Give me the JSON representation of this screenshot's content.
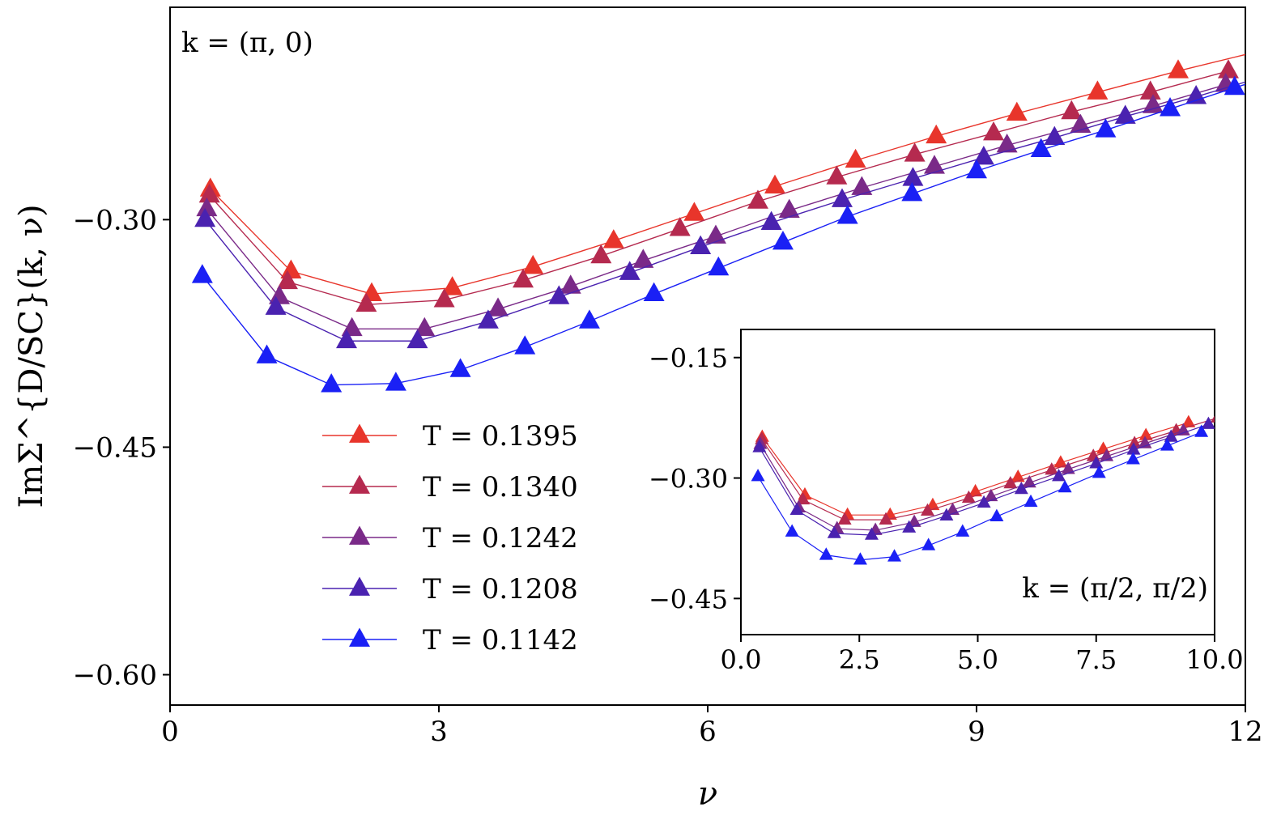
{
  "chart_data": [
    {
      "type": "line",
      "role": "main",
      "xlabel": "ν",
      "ylabel": "ImΣ^{D/SC}(k, ν)",
      "annotation": "k = (π, 0)",
      "xlim": [
        0,
        12
      ],
      "ylim": [
        -0.62,
        -0.16
      ],
      "xticks": [
        0,
        3,
        6,
        9,
        12
      ],
      "xtick_labels": [
        "0",
        "3",
        "6",
        "9",
        "12"
      ],
      "yticks": [
        -0.3,
        -0.45,
        -0.6
      ],
      "ytick_labels": [
        "−0.30",
        "−0.45",
        "−0.60"
      ],
      "grid": false,
      "legend_position": "lower-left",
      "marker": "triangle-up",
      "series": [
        {
          "name": "T = 0.1395",
          "color": "#e8352b",
          "x": [
            0.45,
            1.35,
            2.25,
            3.15,
            4.05,
            4.95,
            5.85,
            6.75,
            7.65,
            8.55,
            9.45,
            10.35,
            11.25,
            12.15
          ],
          "y": [
            -0.28,
            -0.334,
            -0.349,
            -0.345,
            -0.331,
            -0.314,
            -0.296,
            -0.278,
            -0.261,
            -0.245,
            -0.23,
            -0.216,
            -0.202,
            -0.189
          ]
        },
        {
          "name": "T = 0.1340",
          "color": "#b52a4f",
          "x": [
            0.44,
            1.31,
            2.19,
            3.06,
            3.94,
            4.81,
            5.69,
            6.56,
            7.44,
            8.31,
            9.19,
            10.06,
            10.94,
            11.81
          ],
          "y": [
            -0.284,
            -0.341,
            -0.356,
            -0.353,
            -0.34,
            -0.324,
            -0.306,
            -0.288,
            -0.272,
            -0.257,
            -0.243,
            -0.229,
            -0.216,
            -0.202
          ]
        },
        {
          "name": "T = 0.1242",
          "color": "#7a2a88",
          "x": [
            0.41,
            1.22,
            2.03,
            2.84,
            3.66,
            4.47,
            5.28,
            6.09,
            6.91,
            7.72,
            8.53,
            9.34,
            10.16,
            10.97,
            11.78
          ],
          "y": [
            -0.293,
            -0.351,
            -0.372,
            -0.372,
            -0.359,
            -0.344,
            -0.327,
            -0.311,
            -0.294,
            -0.279,
            -0.265,
            -0.251,
            -0.238,
            -0.225,
            -0.211
          ]
        },
        {
          "name": "T = 0.1208",
          "color": "#4a22b0",
          "x": [
            0.39,
            1.18,
            1.97,
            2.76,
            3.55,
            4.34,
            5.13,
            5.92,
            6.71,
            7.5,
            8.29,
            9.08,
            9.87,
            10.66,
            11.45,
            12.24
          ],
          "y": [
            -0.3,
            -0.358,
            -0.38,
            -0.38,
            -0.367,
            -0.351,
            -0.335,
            -0.318,
            -0.302,
            -0.287,
            -0.273,
            -0.259,
            -0.246,
            -0.232,
            -0.219,
            -0.205
          ]
        },
        {
          "name": "T = 0.1142",
          "color": "#1a20f5",
          "x": [
            0.36,
            1.08,
            1.8,
            2.52,
            3.24,
            3.96,
            4.68,
            5.4,
            6.12,
            6.84,
            7.56,
            8.28,
            9.0,
            9.72,
            10.44,
            11.16,
            11.88,
            12.6
          ],
          "y": [
            -0.337,
            -0.39,
            -0.409,
            -0.408,
            -0.399,
            -0.384,
            -0.367,
            -0.349,
            -0.332,
            -0.315,
            -0.298,
            -0.283,
            -0.268,
            -0.254,
            -0.241,
            -0.227,
            -0.213,
            -0.2
          ]
        }
      ]
    },
    {
      "type": "line",
      "role": "inset",
      "annotation": "k = (π/2, π/2)",
      "xlim": [
        0,
        10
      ],
      "ylim": [
        -0.495,
        -0.115
      ],
      "xticks": [
        0,
        2.5,
        5,
        7.5,
        10
      ],
      "xtick_labels": [
        "0.0",
        "2.5",
        "5.0",
        "7.5",
        "10.0"
      ],
      "yticks": [
        -0.15,
        -0.3,
        -0.45
      ],
      "ytick_labels": [
        "−0.15",
        "−0.30",
        "−0.45"
      ],
      "grid": false,
      "marker": "triangle-up",
      "series": [
        {
          "name": "T = 0.1395",
          "color": "#e8352b",
          "x": [
            0.45,
            1.35,
            2.25,
            3.15,
            4.05,
            4.95,
            5.85,
            6.75,
            7.65,
            8.55,
            9.45
          ],
          "y": [
            -0.249,
            -0.321,
            -0.346,
            -0.346,
            -0.334,
            -0.317,
            -0.299,
            -0.281,
            -0.264,
            -0.247,
            -0.231
          ]
        },
        {
          "name": "T = 0.1340",
          "color": "#b52a4f",
          "x": [
            0.44,
            1.31,
            2.19,
            3.06,
            3.94,
            4.81,
            5.69,
            6.56,
            7.44,
            8.31,
            9.19,
            10.06
          ],
          "y": [
            -0.252,
            -0.327,
            -0.352,
            -0.352,
            -0.341,
            -0.325,
            -0.307,
            -0.29,
            -0.273,
            -0.257,
            -0.241,
            -0.225
          ]
        },
        {
          "name": "T = 0.1242",
          "color": "#7a2a88",
          "x": [
            0.41,
            1.22,
            2.03,
            2.84,
            3.66,
            4.47,
            5.28,
            6.09,
            6.91,
            7.72,
            8.53,
            9.34
          ],
          "y": [
            -0.258,
            -0.337,
            -0.363,
            -0.365,
            -0.355,
            -0.34,
            -0.323,
            -0.306,
            -0.289,
            -0.273,
            -0.257,
            -0.241
          ]
        },
        {
          "name": "T = 0.1208",
          "color": "#4a22b0",
          "x": [
            0.39,
            1.18,
            1.97,
            2.76,
            3.55,
            4.34,
            5.13,
            5.92,
            6.71,
            7.5,
            8.29,
            9.08,
            9.87
          ],
          "y": [
            -0.262,
            -0.34,
            -0.369,
            -0.371,
            -0.362,
            -0.347,
            -0.331,
            -0.314,
            -0.298,
            -0.282,
            -0.265,
            -0.249,
            -0.233
          ]
        },
        {
          "name": "T = 0.1142",
          "color": "#1a20f5",
          "x": [
            0.36,
            1.08,
            1.8,
            2.52,
            3.24,
            3.96,
            4.68,
            5.4,
            6.12,
            6.84,
            7.56,
            8.28,
            9.0,
            9.72
          ],
          "y": [
            -0.298,
            -0.367,
            -0.396,
            -0.402,
            -0.398,
            -0.384,
            -0.367,
            -0.348,
            -0.33,
            -0.312,
            -0.294,
            -0.277,
            -0.26,
            -0.243
          ]
        }
      ]
    }
  ]
}
